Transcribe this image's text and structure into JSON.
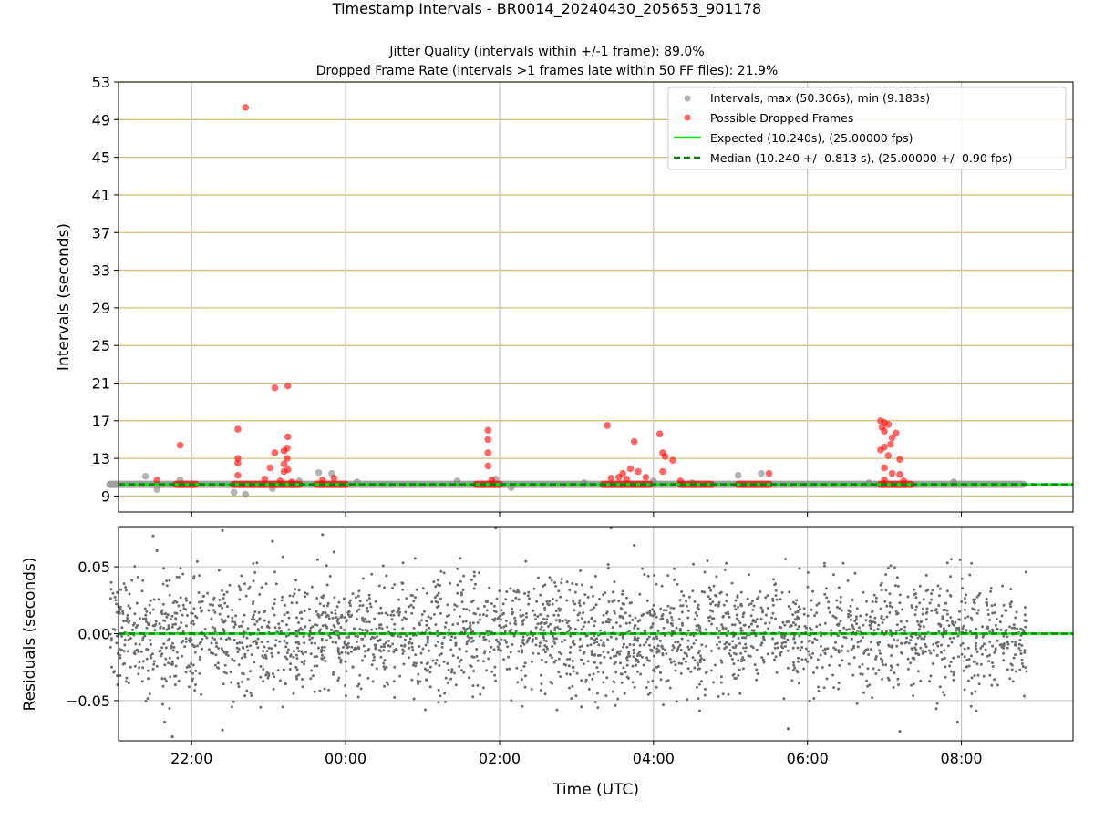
{
  "title": "Timestamp Intervals - BR0014_20240430_205653_901178",
  "subtitle_1": "Jitter Quality (intervals within +/-1 frame): 89.0%",
  "subtitle_2": "Dropped Frame Rate (intervals >1 frames late within 50 FF files): 21.9%",
  "colors": {
    "intervals": "#808080",
    "dropped": "#ff0000",
    "expected": "#00ee00",
    "median": "#008000",
    "hgrid": "#d4c07a",
    "vgrid": "#c8c8c8",
    "residuals": "#6e6e6e"
  },
  "chart_data": [
    {
      "type": "scatter",
      "ylabel": "Intervals (seconds)",
      "xlabel": "",
      "x_unit": "hours since 00:00 UTC",
      "xlim": [
        -2.95,
        9.45
      ],
      "ylim": [
        7.3,
        53
      ],
      "yticks": [
        9,
        13,
        17,
        21,
        25,
        29,
        33,
        37,
        41,
        45,
        49,
        53
      ],
      "xticks": [
        {
          "value": -2,
          "label": "22:00"
        },
        {
          "value": 0,
          "label": "00:00"
        },
        {
          "value": 2,
          "label": "02:00"
        },
        {
          "value": 4,
          "label": "04:00"
        },
        {
          "value": 6,
          "label": "06:00"
        },
        {
          "value": 8,
          "label": "08:00"
        }
      ],
      "grid": {
        "horizontal": true,
        "vertical": true
      },
      "legend_position": "top-right",
      "legend": [
        "Intervals, max (50.306s), min (9.183s)",
        "Possible Dropped Frames",
        "Expected (10.240s), (25.00000 fps)",
        "Median (10.240 +/- 0.813 s), (25.00000 +/- 0.90 fps)"
      ],
      "expected": 10.24,
      "median": 10.24,
      "series": [
        {
          "name": "Intervals, max (50.306s), min (9.183s)",
          "baseline": {
            "x_start": -3.06,
            "x_end": 8.8,
            "y": 10.24
          },
          "outliers": [
            {
              "x": -2.6,
              "y": 11.1
            },
            {
              "x": -2.45,
              "y": 9.7
            },
            {
              "x": -2.15,
              "y": 10.7
            },
            {
              "x": -1.45,
              "y": 9.4
            },
            {
              "x": -1.3,
              "y": 9.18
            },
            {
              "x": -0.95,
              "y": 9.8
            },
            {
              "x": -0.6,
              "y": 10.6
            },
            {
              "x": -0.35,
              "y": 11.5
            },
            {
              "x": -0.18,
              "y": 11.4
            },
            {
              "x": 0.15,
              "y": 10.5
            },
            {
              "x": 1.45,
              "y": 10.6
            },
            {
              "x": 1.95,
              "y": 10.8
            },
            {
              "x": 2.15,
              "y": 9.9
            },
            {
              "x": 3.1,
              "y": 10.4
            },
            {
              "x": 4.0,
              "y": 10.6
            },
            {
              "x": 4.5,
              "y": 10.4
            },
            {
              "x": 5.1,
              "y": 11.2
            },
            {
              "x": 5.4,
              "y": 11.4
            },
            {
              "x": 6.8,
              "y": 10.4
            },
            {
              "x": 7.9,
              "y": 10.5
            }
          ]
        },
        {
          "name": "Possible Dropped Frames",
          "points": [
            {
              "x": -2.15,
              "y": 14.4
            },
            {
              "x": -2.45,
              "y": 10.7
            },
            {
              "x": -1.4,
              "y": 16.1
            },
            {
              "x": -1.4,
              "y": 13.0
            },
            {
              "x": -1.4,
              "y": 12.5
            },
            {
              "x": -1.4,
              "y": 11.2
            },
            {
              "x": -1.3,
              "y": 50.3
            },
            {
              "x": -1.05,
              "y": 10.8
            },
            {
              "x": -0.98,
              "y": 12.0
            },
            {
              "x": -0.92,
              "y": 20.5
            },
            {
              "x": -0.92,
              "y": 13.6
            },
            {
              "x": -0.85,
              "y": 10.6
            },
            {
              "x": -0.75,
              "y": 20.7
            },
            {
              "x": -0.75,
              "y": 15.3
            },
            {
              "x": -0.76,
              "y": 14.1
            },
            {
              "x": -0.8,
              "y": 13.8
            },
            {
              "x": -0.76,
              "y": 13.0
            },
            {
              "x": -0.8,
              "y": 12.4
            },
            {
              "x": -0.75,
              "y": 11.8
            },
            {
              "x": -0.8,
              "y": 11.6
            },
            {
              "x": -0.7,
              "y": 10.5
            },
            {
              "x": -0.3,
              "y": 10.7
            },
            {
              "x": -0.15,
              "y": 10.9
            },
            {
              "x": 1.85,
              "y": 16.0
            },
            {
              "x": 1.85,
              "y": 15.0
            },
            {
              "x": 1.85,
              "y": 13.6
            },
            {
              "x": 1.85,
              "y": 12.2
            },
            {
              "x": 1.9,
              "y": 10.7
            },
            {
              "x": 3.4,
              "y": 16.5
            },
            {
              "x": 3.45,
              "y": 10.9
            },
            {
              "x": 3.55,
              "y": 11.0
            },
            {
              "x": 3.6,
              "y": 11.4
            },
            {
              "x": 3.7,
              "y": 11.9
            },
            {
              "x": 3.75,
              "y": 14.8
            },
            {
              "x": 3.8,
              "y": 11.6
            },
            {
              "x": 3.65,
              "y": 10.8
            },
            {
              "x": 3.9,
              "y": 11.0
            },
            {
              "x": 4.08,
              "y": 15.6
            },
            {
              "x": 4.12,
              "y": 13.6
            },
            {
              "x": 4.15,
              "y": 13.2
            },
            {
              "x": 4.12,
              "y": 11.6
            },
            {
              "x": 4.25,
              "y": 12.8
            },
            {
              "x": 4.35,
              "y": 10.6
            },
            {
              "x": 5.5,
              "y": 11.4
            },
            {
              "x": 6.95,
              "y": 17.0
            },
            {
              "x": 7.0,
              "y": 16.8
            },
            {
              "x": 6.97,
              "y": 16.3
            },
            {
              "x": 7.05,
              "y": 16.6
            },
            {
              "x": 7.0,
              "y": 15.9
            },
            {
              "x": 7.1,
              "y": 15.2
            },
            {
              "x": 7.15,
              "y": 15.7
            },
            {
              "x": 7.0,
              "y": 14.2
            },
            {
              "x": 7.08,
              "y": 14.5
            },
            {
              "x": 6.95,
              "y": 13.9
            },
            {
              "x": 7.05,
              "y": 13.3
            },
            {
              "x": 7.2,
              "y": 12.9
            },
            {
              "x": 7.0,
              "y": 12.0
            },
            {
              "x": 7.1,
              "y": 11.4
            },
            {
              "x": 7.2,
              "y": 11.3
            },
            {
              "x": 7.0,
              "y": 10.7
            },
            {
              "x": 7.25,
              "y": 10.6
            }
          ],
          "baseline_clusters": [
            {
              "x_start": -2.2,
              "x_end": -1.95,
              "y": 10.24
            },
            {
              "x_start": -1.45,
              "x_end": -0.6,
              "y": 10.24
            },
            {
              "x_start": -0.38,
              "x_end": 0.0,
              "y": 10.24
            },
            {
              "x_start": 1.7,
              "x_end": 2.0,
              "y": 10.24
            },
            {
              "x_start": 3.35,
              "x_end": 3.95,
              "y": 10.24
            },
            {
              "x_start": 4.35,
              "x_end": 4.75,
              "y": 10.24
            },
            {
              "x_start": 5.1,
              "x_end": 5.5,
              "y": 10.24
            },
            {
              "x_start": 6.95,
              "x_end": 7.35,
              "y": 10.24
            }
          ]
        }
      ]
    },
    {
      "type": "scatter",
      "ylabel": "Residuals (seconds)",
      "xlabel": "Time (UTC)",
      "x_unit": "hours since 00:00 UTC",
      "xlim": [
        -2.95,
        9.45
      ],
      "ylim": [
        -0.08,
        0.08
      ],
      "yticks": [
        {
          "value": 0.05,
          "label": "0.05"
        },
        {
          "value": 0.0,
          "label": "0.00"
        },
        {
          "value": -0.05,
          "label": "−0.05"
        }
      ],
      "xticks": [
        {
          "value": -2,
          "label": "22:00"
        },
        {
          "value": 0,
          "label": "00:00"
        },
        {
          "value": 2,
          "label": "02:00"
        },
        {
          "value": 4,
          "label": "04:00"
        },
        {
          "value": 6,
          "label": "06:00"
        },
        {
          "value": 8,
          "label": "08:00"
        }
      ],
      "grid": {
        "horizontal": true,
        "vertical": true
      },
      "zero_lines": [
        {
          "name": "expected",
          "y": 0.0
        },
        {
          "name": "median",
          "y": 0.0
        }
      ],
      "series": [
        {
          "name": "",
          "x_range": [
            -3.06,
            8.85
          ],
          "std_dev_approx": 0.022,
          "point_count_approx": 2750,
          "points": [
            {
              "x": -2.5,
              "y": 0.073
            },
            {
              "x": -2.45,
              "y": 0.062
            },
            {
              "x": -2.35,
              "y": -0.066
            },
            {
              "x": -2.25,
              "y": -0.077
            },
            {
              "x": -1.6,
              "y": 0.077
            },
            {
              "x": -1.6,
              "y": -0.072
            },
            {
              "x": -0.95,
              "y": 0.069
            },
            {
              "x": -0.3,
              "y": 0.074
            },
            {
              "x": -0.15,
              "y": 0.061
            },
            {
              "x": 1.95,
              "y": 0.079
            },
            {
              "x": 3.45,
              "y": 0.079
            },
            {
              "x": 3.75,
              "y": 0.066
            },
            {
              "x": 5.75,
              "y": -0.071
            },
            {
              "x": 7.2,
              "y": -0.073
            },
            {
              "x": 7.95,
              "y": -0.066
            }
          ]
        }
      ]
    }
  ]
}
